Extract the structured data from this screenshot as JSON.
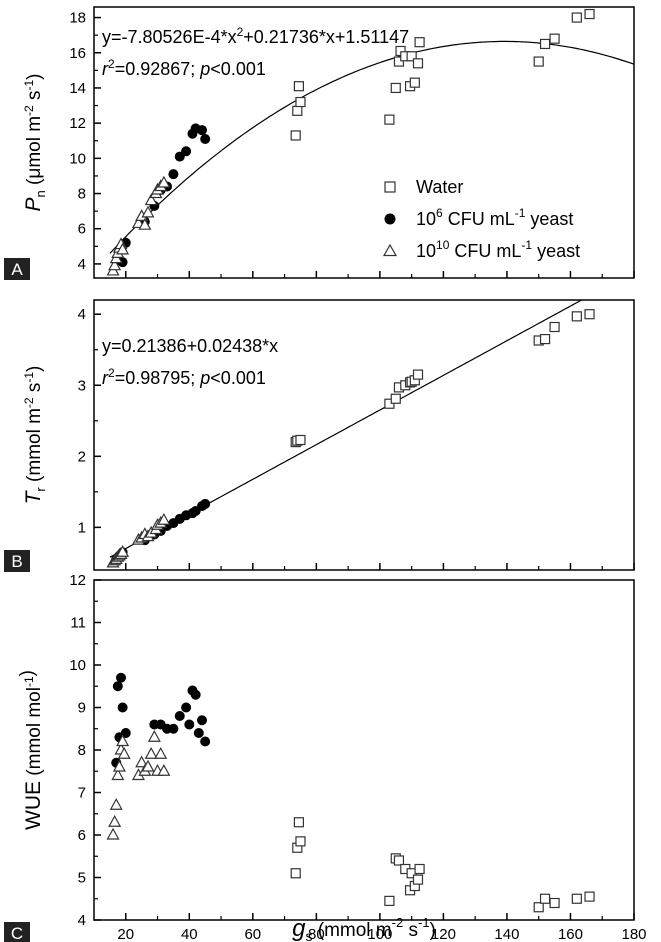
{
  "figure": {
    "x_axis": {
      "label_symbol": "g",
      "label_sub": "s",
      "label_unit_pre": "(mmol m",
      "label_unit_sup": "-2",
      "label_unit_post": " s",
      "label_unit_sup2": "-1",
      "label_close": ")",
      "range": [
        10,
        180
      ],
      "ticks": [
        20,
        40,
        60,
        80,
        100,
        120,
        140,
        160,
        180
      ]
    },
    "legend": {
      "placement": "right-middle of panel A",
      "items": [
        {
          "marker": "open-square",
          "text": "Water"
        },
        {
          "marker": "filled-circle",
          "base": "10",
          "exp": "6",
          "text": " CFU mL",
          "unit_sup": "-1",
          "tail": " yeast"
        },
        {
          "marker": "open-triangle",
          "base": "10",
          "exp": "10",
          "text": " CFU mL",
          "unit_sup": "-1",
          "tail": " yeast"
        }
      ]
    }
  },
  "chart_data": [
    {
      "panel": "A",
      "type": "scatter",
      "y_axis": {
        "symbol": "P",
        "sub": "n",
        "unit_pre": " (μmol m",
        "unit_sup": "-2",
        "unit_mid": " s",
        "unit_sup2": "-1",
        "unit_post": ")",
        "range": [
          3.2,
          18.6
        ],
        "ticks": [
          4,
          6,
          8,
          10,
          12,
          14,
          16,
          18
        ]
      },
      "equation": "y=-7.80526E-4*x",
      "equation_sup": "2",
      "equation_tail": "+0.21736*x+1.51147",
      "r2_label": "r",
      "r2_sup": "2",
      "r2_value": "=0.92867; ",
      "p_label": "p",
      "p_value": "<0.001",
      "fit": {
        "kind": "quadratic",
        "a": -0.000780526,
        "b": 0.21736,
        "c": 1.51147
      },
      "series": [
        {
          "name": "Water",
          "marker": "open-square",
          "x": [
            73.5,
            74,
            74.5,
            75,
            103,
            105,
            106,
            106.5,
            108,
            109.5,
            110,
            111,
            112,
            112.5,
            150,
            152,
            155,
            162,
            166
          ],
          "y": [
            11.3,
            12.7,
            14.1,
            13.2,
            12.2,
            14.0,
            15.5,
            16.1,
            15.8,
            14.1,
            15.8,
            14.3,
            15.4,
            16.6,
            15.5,
            16.5,
            16.8,
            18.0,
            18.2
          ]
        },
        {
          "name": "10^6 CFU mL-1 yeast",
          "marker": "filled-circle",
          "x": [
            17.5,
            19,
            20,
            26,
            29,
            31,
            33,
            35,
            37,
            39,
            41,
            42,
            44,
            45
          ],
          "y": [
            4.2,
            4.1,
            5.2,
            6.4,
            7.3,
            8.2,
            8.4,
            9.1,
            10.1,
            10.4,
            11.4,
            11.7,
            11.6,
            11.1
          ]
        },
        {
          "name": "10^10 CFU mL-1 yeast",
          "marker": "open-triangle",
          "x": [
            16,
            16.5,
            17,
            17.5,
            18,
            18.5,
            19,
            24,
            25,
            26,
            27,
            28,
            29.5,
            30,
            31,
            32
          ],
          "y": [
            3.6,
            3.9,
            4.3,
            4.6,
            4.9,
            5.1,
            4.8,
            6.3,
            6.7,
            6.2,
            6.9,
            7.6,
            8.0,
            8.2,
            8.4,
            8.6
          ]
        }
      ]
    },
    {
      "panel": "B",
      "type": "scatter",
      "y_axis": {
        "symbol": "T",
        "sub": "r",
        "unit_pre": " (mmol m",
        "unit_sup": "-2",
        "unit_mid": " s",
        "unit_sup2": "-1",
        "unit_post": ")",
        "range": [
          0.4,
          4.2
        ],
        "ticks": [
          1,
          2,
          3,
          4
        ]
      },
      "equation": "y=0.21386+0.02438*x",
      "r2_label": "r",
      "r2_sup": "2",
      "r2_value": "=0.98795; ",
      "p_label": "p",
      "p_value": "<0.001",
      "fit": {
        "kind": "linear",
        "a": 0.21386,
        "b": 0.02438
      },
      "series": [
        {
          "name": "Water",
          "marker": "open-square",
          "x": [
            73.5,
            74,
            75,
            103,
            105,
            106,
            108,
            109.5,
            110,
            111,
            112,
            150,
            152,
            155,
            162,
            166
          ],
          "y": [
            2.2,
            2.22,
            2.23,
            2.74,
            2.81,
            2.97,
            3.0,
            3.04,
            3.05,
            3.07,
            3.15,
            3.63,
            3.65,
            3.82,
            3.97,
            4.0
          ]
        },
        {
          "name": "10^6 CFU mL-1 yeast",
          "marker": "filled-circle",
          "x": [
            17,
            18,
            19,
            26,
            29,
            31,
            33,
            35,
            37,
            39,
            41,
            42,
            44,
            45
          ],
          "y": [
            0.55,
            0.6,
            0.65,
            0.82,
            0.9,
            0.95,
            1.02,
            1.06,
            1.12,
            1.17,
            1.2,
            1.23,
            1.3,
            1.33
          ]
        },
        {
          "name": "10^10 CFU mL-1 yeast",
          "marker": "open-triangle",
          "x": [
            16,
            16.5,
            17,
            17.5,
            18,
            18.5,
            19,
            24,
            25,
            26,
            27,
            28,
            29.5,
            30,
            31,
            32
          ],
          "y": [
            0.5,
            0.53,
            0.55,
            0.58,
            0.6,
            0.62,
            0.65,
            0.82,
            0.85,
            0.9,
            0.87,
            0.92,
            0.97,
            1.03,
            1.06,
            1.1
          ]
        }
      ]
    },
    {
      "panel": "C",
      "type": "scatter",
      "y_axis": {
        "symbol": "WUE",
        "sub": "",
        "unit_pre": " (mmol mol",
        "unit_sup": "-1",
        "unit_mid": "",
        "unit_sup2": "",
        "unit_post": ")",
        "range": [
          4,
          12
        ],
        "ticks": [
          4,
          5,
          6,
          7,
          8,
          9,
          10,
          11,
          12
        ]
      },
      "series": [
        {
          "name": "Water",
          "marker": "open-square",
          "x": [
            73.5,
            74,
            74.5,
            75,
            103,
            105,
            106,
            108,
            109.5,
            110,
            111,
            112,
            112.5,
            150,
            152,
            155,
            162,
            166
          ],
          "y": [
            5.1,
            5.7,
            6.3,
            5.85,
            4.45,
            5.45,
            5.4,
            5.2,
            4.7,
            5.1,
            4.8,
            4.95,
            5.2,
            4.3,
            4.5,
            4.4,
            4.5,
            4.55
          ]
        },
        {
          "name": "10^6 CFU mL-1 yeast",
          "marker": "filled-circle",
          "x": [
            17,
            17.5,
            18,
            18.5,
            19,
            20,
            29,
            31,
            33,
            35,
            37,
            39,
            40,
            41,
            42,
            43,
            44,
            45
          ],
          "y": [
            7.7,
            9.5,
            8.3,
            9.7,
            9.0,
            8.4,
            8.6,
            8.6,
            8.5,
            8.5,
            8.8,
            9.0,
            8.6,
            9.4,
            9.3,
            8.4,
            8.7,
            8.2
          ]
        },
        {
          "name": "10^10 CFU mL-1 yeast",
          "marker": "open-triangle",
          "x": [
            16,
            16.5,
            17,
            17.5,
            18,
            18.5,
            19,
            19.5,
            24,
            25,
            26,
            27,
            28,
            29,
            30,
            31,
            32
          ],
          "y": [
            6.0,
            6.3,
            6.7,
            7.4,
            7.6,
            8.0,
            8.2,
            7.9,
            7.4,
            7.7,
            7.5,
            7.6,
            7.9,
            8.3,
            7.5,
            7.9,
            7.5
          ]
        }
      ]
    }
  ]
}
